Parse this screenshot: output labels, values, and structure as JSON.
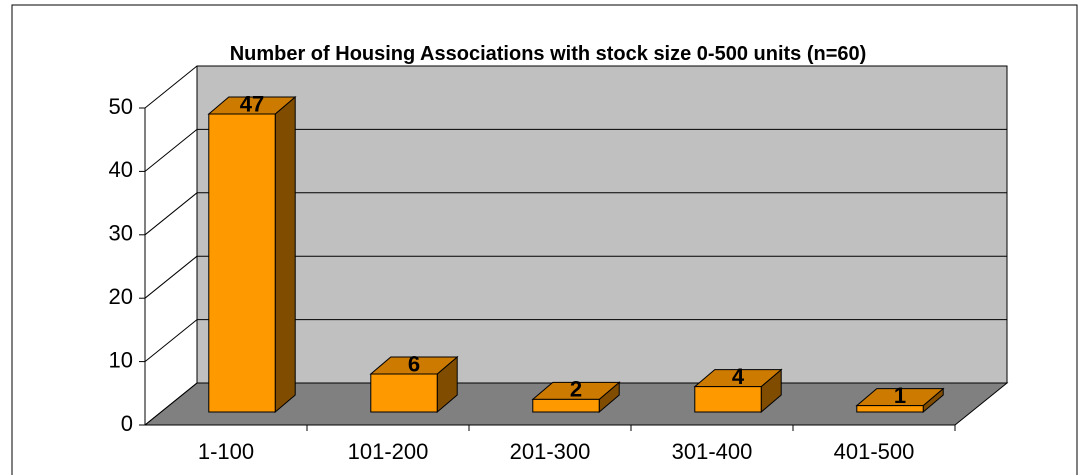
{
  "chart_data": {
    "type": "bar3d",
    "title": "Number of Housing Associations with stock size 0-500 units (n=60)",
    "categories": [
      "1-100",
      "101-200",
      "201-300",
      "301-400",
      "401-500"
    ],
    "values": [
      47,
      6,
      2,
      4,
      1
    ],
    "color": "#ff9900",
    "ylim": [
      0,
      50
    ],
    "yticks": [
      0,
      10,
      20,
      30,
      40,
      50
    ],
    "grid": true
  }
}
